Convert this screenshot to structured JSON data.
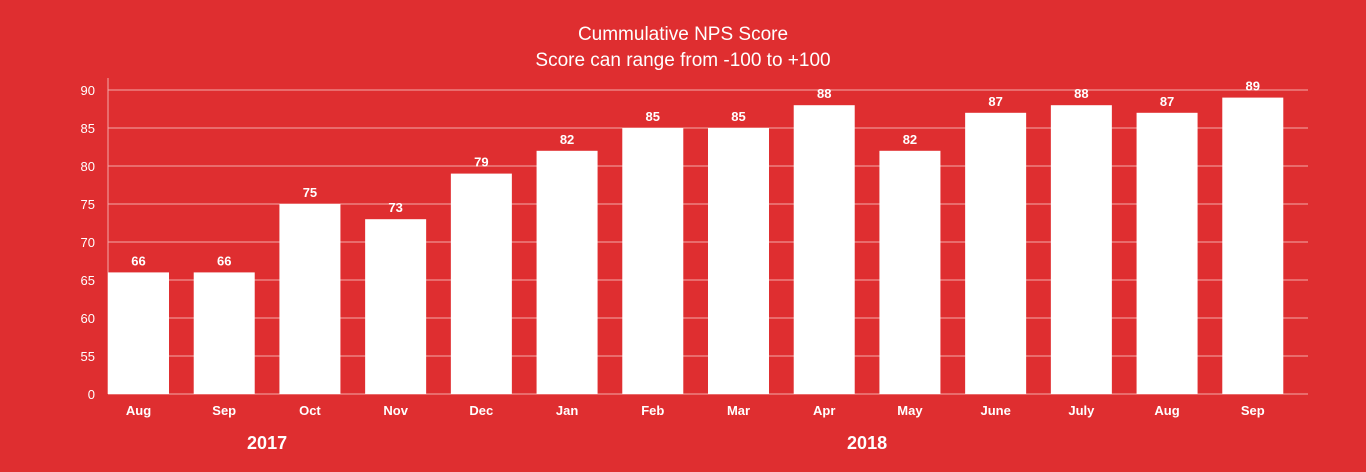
{
  "chart_data": {
    "type": "bar",
    "title": "Cummulative NPS Score",
    "subtitle": "Score can range from -100 to +100",
    "categories": [
      "Aug",
      "Sep",
      "Oct",
      "Nov",
      "Dec",
      "Jan",
      "Feb",
      "Mar",
      "Apr",
      "May",
      "June",
      "July",
      "Aug",
      "Sep"
    ],
    "values": [
      66,
      66,
      75,
      73,
      79,
      82,
      85,
      85,
      88,
      82,
      87,
      88,
      87,
      89
    ],
    "data_labels": [
      "66",
      "66",
      "75",
      "73",
      "79",
      "82",
      "85",
      "85",
      "88",
      "82",
      "87",
      "88",
      "87",
      "89"
    ],
    "y_ticks": [
      0,
      55,
      60,
      65,
      70,
      75,
      80,
      85,
      90
    ],
    "y_tick_labels": [
      "0",
      "55",
      "60",
      "65",
      "70",
      "75",
      "80",
      "85",
      "90"
    ],
    "ylim": [
      0,
      90
    ],
    "axis_break": true,
    "grid": true,
    "group_labels": [
      {
        "label": "2017",
        "start": 0,
        "end": 3
      },
      {
        "label": "2018",
        "start": 4,
        "end": 13
      }
    ],
    "colors": {
      "background": "#df2e30",
      "bar": "#ffffff",
      "grid": "#f3a9a9",
      "text": "#ffffff"
    }
  }
}
